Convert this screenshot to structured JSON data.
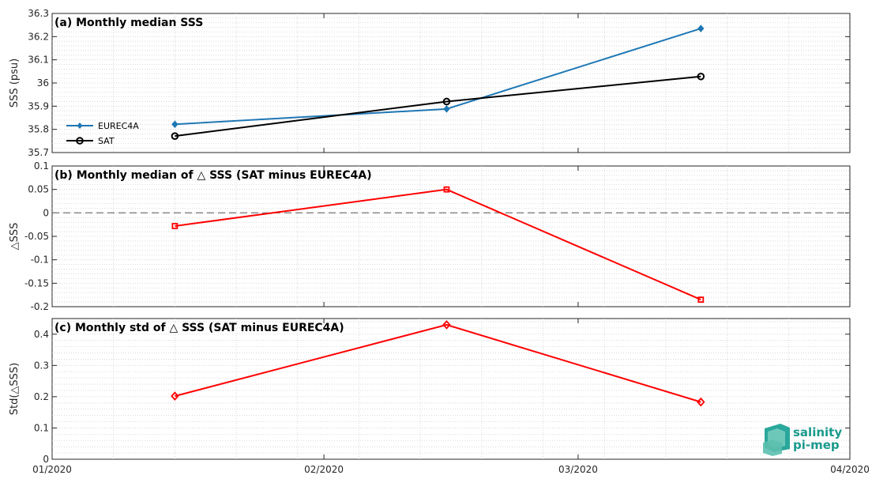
{
  "chart_data": [
    {
      "type": "line",
      "title": "(a) Monthly median SSS",
      "ylabel": "SSS (psu)",
      "ylim": [
        35.7,
        36.3
      ],
      "yticks": [
        35.7,
        35.8,
        35.9,
        36,
        36.1,
        36.2,
        36.3
      ],
      "xlim": [
        "2020-01-01",
        "2020-04-01"
      ],
      "grid": true,
      "legend_position": "lower-left",
      "series": [
        {
          "name": "EUREC4A",
          "color": "#1f77b4",
          "marker": "diamond-filled",
          "x": [
            "2020-01-15",
            "2020-02-15",
            "2020-03-15"
          ],
          "values": [
            35.822,
            35.888,
            36.235
          ]
        },
        {
          "name": "SAT",
          "color": "#000000",
          "marker": "circle-open",
          "x": [
            "2020-01-15",
            "2020-02-15",
            "2020-03-15"
          ],
          "values": [
            35.771,
            35.92,
            36.028
          ]
        }
      ]
    },
    {
      "type": "line",
      "title": "(b) Monthly median of △ SSS (SAT minus EUREC4A)",
      "ylabel": "△SSS",
      "ylim": [
        -0.2,
        0.1
      ],
      "yticks": [
        -0.2,
        -0.15,
        -0.1,
        -0.05,
        0,
        0.05,
        0.1
      ],
      "xlim": [
        "2020-01-01",
        "2020-04-01"
      ],
      "grid": true,
      "zero_line": true,
      "series": [
        {
          "color": "#ff0000",
          "marker": "square-open",
          "x": [
            "2020-01-15",
            "2020-02-15",
            "2020-03-15"
          ],
          "values": [
            -0.028,
            0.05,
            -0.185
          ]
        }
      ]
    },
    {
      "type": "line",
      "title": "(c) Monthly std of △ SSS (SAT minus EUREC4A)",
      "ylabel": "Std(△SSS)",
      "ylim": [
        0,
        0.45
      ],
      "yticks": [
        0,
        0.1,
        0.2,
        0.3,
        0.4
      ],
      "xlim": [
        "2020-01-01",
        "2020-04-01"
      ],
      "xticks": [
        "2020-01-01",
        "2020-02-01",
        "2020-03-01",
        "2020-04-01"
      ],
      "xticklabels": [
        "01/2020",
        "02/2020",
        "03/2020",
        "04/2020"
      ],
      "grid": true,
      "series": [
        {
          "color": "#ff0000",
          "marker": "diamond-open",
          "x": [
            "2020-01-15",
            "2020-02-15",
            "2020-03-15"
          ],
          "values": [
            0.202,
            0.43,
            0.183
          ]
        }
      ]
    }
  ],
  "logo": {
    "line1": "salinity",
    "line2": "pi-mep"
  }
}
